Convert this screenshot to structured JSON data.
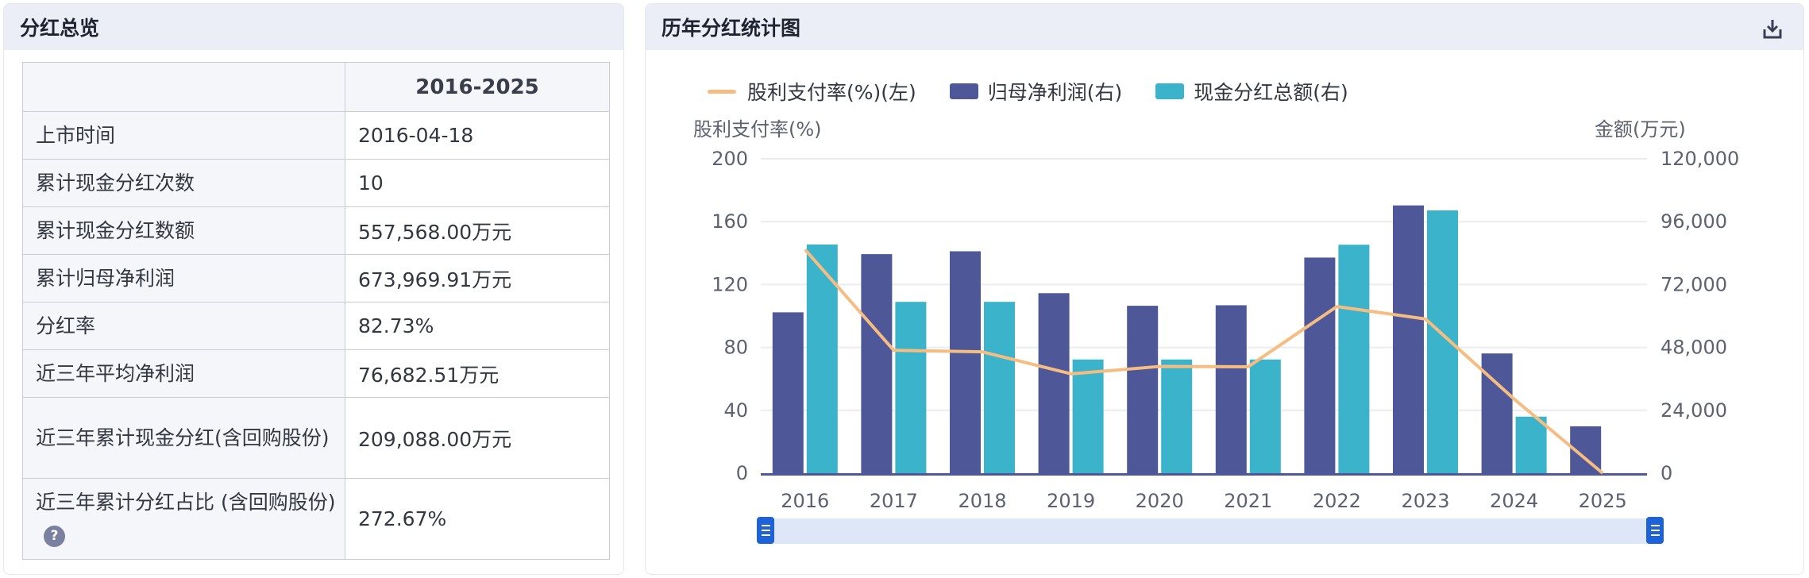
{
  "overview": {
    "title": "分红总览",
    "period_header": "2016-2025",
    "rows": [
      {
        "label": "上市时间",
        "value": "2016-04-18"
      },
      {
        "label": "累计现金分红次数",
        "value": "10"
      },
      {
        "label": "累计现金分红数额",
        "value": "557,568.00万元"
      },
      {
        "label": "累计归母净利润",
        "value": "673,969.91万元"
      },
      {
        "label": "分红率",
        "value": "82.73%"
      },
      {
        "label": "近三年平均净利润",
        "value": "76,682.51万元"
      },
      {
        "label": "近三年累计现金分红(含回购股份)",
        "value": "209,088.00万元"
      },
      {
        "label": "近三年累计分红占比 (含回购股份)",
        "value": "272.67%",
        "help_icon": "?"
      }
    ]
  },
  "chart_panel": {
    "title": "历年分红统计图",
    "download_icon": "download-icon"
  },
  "chart_data": {
    "type": "bar",
    "title": "历年分红统计图",
    "categories": [
      "2016",
      "2017",
      "2018",
      "2019",
      "2020",
      "2021",
      "2022",
      "2023",
      "2024",
      "2025"
    ],
    "series": [
      {
        "name": "股利支付率(%)(左)",
        "type": "line",
        "axis": "left",
        "color": "#f6bd82",
        "values": [
          142.2,
          78.2,
          77.2,
          63.2,
          67.9,
          67.7,
          106.0,
          98.1,
          47.2,
          0
        ]
      },
      {
        "name": "归母净利润(右)",
        "type": "bar",
        "axis": "right",
        "color": "#4e5797",
        "values": [
          61400,
          83600,
          84700,
          68700,
          63900,
          64100,
          82300,
          102200,
          45700,
          17900
        ]
      },
      {
        "name": "现金分红总额(右)",
        "type": "bar",
        "axis": "right",
        "color": "#3ab3cb",
        "values": [
          87300,
          65400,
          65400,
          43400,
          43400,
          43400,
          87200,
          100300,
          21588,
          0
        ]
      }
    ],
    "ylabel_left": "股利支付率(%)",
    "ylabel_right": "金额(万元)",
    "ylim_left": [
      0,
      200
    ],
    "ylim_right": [
      0,
      120000
    ],
    "yticks_left": [
      "0",
      "40",
      "80",
      "120",
      "160",
      "200"
    ],
    "yticks_right": [
      "0",
      "24,000",
      "48,000",
      "72,000",
      "96,000",
      "120,000"
    ],
    "grid": true,
    "legend_position": "top-left",
    "data_zoom": {
      "start": 0,
      "end": 100
    }
  }
}
